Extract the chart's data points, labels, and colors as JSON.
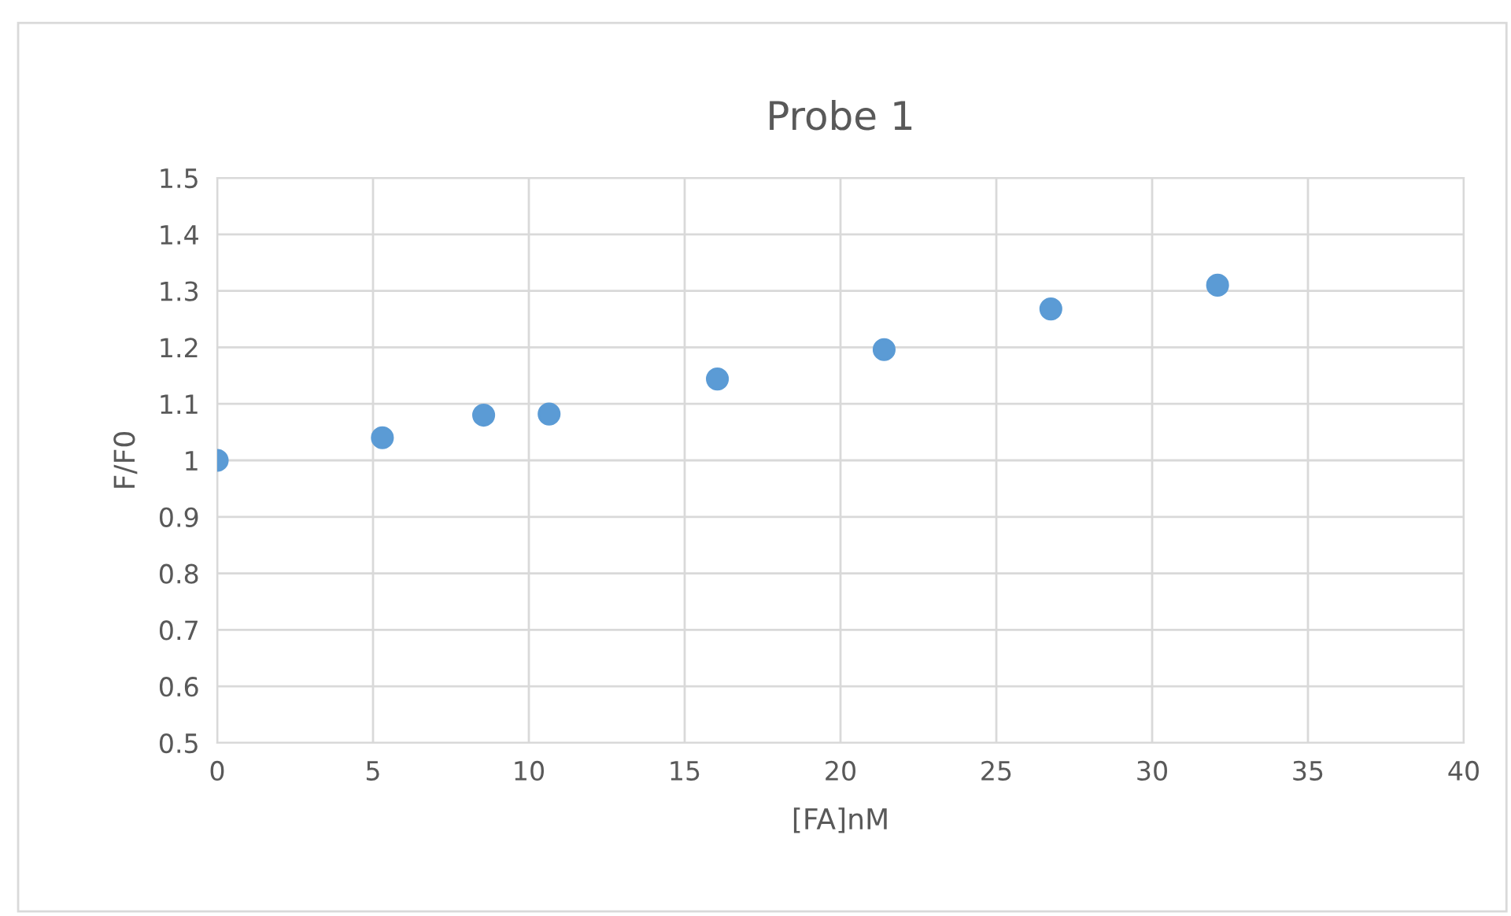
{
  "chart_data": {
    "type": "scatter",
    "title": "Probe 1",
    "xlabel": "[FA]nM",
    "ylabel": "F/F0",
    "series": [
      {
        "color": "#5b9bd5",
        "x": [
          0,
          5.3,
          8.55,
          10.65,
          16.05,
          21.4,
          26.75,
          32.1
        ],
        "values": [
          1.0,
          1.04,
          1.08,
          1.082,
          1.144,
          1.196,
          1.268,
          1.31
        ]
      }
    ],
    "xlim": [
      0,
      40
    ],
    "xticks": [
      0,
      5,
      10,
      15,
      20,
      25,
      30,
      35,
      40
    ],
    "ylim": [
      0.5,
      1.5
    ],
    "yticks": [
      0.5,
      0.6,
      0.7,
      0.8,
      0.9,
      1,
      1.1,
      1.2,
      1.3,
      1.4,
      1.5
    ],
    "grid": true,
    "marker": "circle",
    "legend": false
  }
}
